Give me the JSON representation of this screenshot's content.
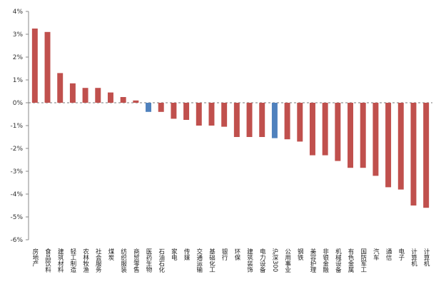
{
  "chart_data": {
    "type": "bar",
    "title": "",
    "xlabel": "",
    "ylabel": "",
    "ylim": [
      -6,
      4
    ],
    "yticks": [
      "4%",
      "3%",
      "2%",
      "1%",
      "0%",
      "-1%",
      "-2%",
      "-3%",
      "-4%",
      "-5%",
      "-6%"
    ],
    "grid": false,
    "legend": "none",
    "colors": {
      "default": "#c0504d",
      "highlight": "#4f81bd"
    },
    "categories": [
      "房地产",
      "食品饮料",
      "建筑材料",
      "轻工制造",
      "农林牧渔",
      "社会服务",
      "煤炭",
      "纺织服装",
      "商贸零售",
      "医药生物",
      "石油石化",
      "家电",
      "传媒",
      "交通运输",
      "基础化工",
      "银行",
      "环保",
      "建筑装饰",
      "电力设备",
      "沪深300",
      "公用事业",
      "钢铁",
      "美容护理",
      "非银金融",
      "机械设备",
      "有色金属",
      "国防军工",
      "汽车",
      "通信",
      "电子",
      "计算机",
      "计算机"
    ],
    "values": [
      3.25,
      3.1,
      1.3,
      0.85,
      0.65,
      0.65,
      0.45,
      0.25,
      0.1,
      -0.4,
      -0.4,
      -0.7,
      -0.75,
      -1.0,
      -1.0,
      -1.05,
      -1.5,
      -1.5,
      -1.5,
      -1.55,
      -1.6,
      -1.7,
      -2.3,
      -2.3,
      -2.55,
      -2.85,
      -2.85,
      -3.2,
      -3.7,
      -3.8,
      -4.5,
      -4.6
    ],
    "highlight_indices": [
      9,
      19
    ]
  }
}
